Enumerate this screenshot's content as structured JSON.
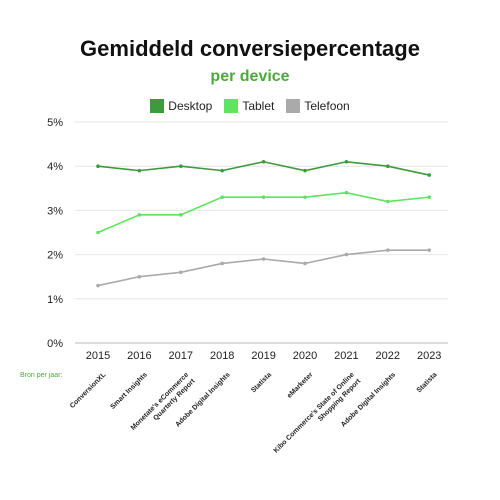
{
  "chart_data": {
    "type": "line",
    "title": "Gemiddeld conversiepercentage",
    "subtitle": "per device",
    "x": [
      "2015",
      "2016",
      "2017",
      "2018",
      "2019",
      "2020",
      "2021",
      "2022",
      "2023"
    ],
    "ylim": [
      0,
      5
    ],
    "yticks": [
      "0%",
      "1%",
      "2%",
      "3%",
      "4%",
      "5%"
    ],
    "grid": true,
    "legend_position": "top-center",
    "series": [
      {
        "name": "Desktop",
        "color": "#3c9b3c",
        "values": [
          4.0,
          3.9,
          4.0,
          3.9,
          4.1,
          3.9,
          4.1,
          4.0,
          3.8
        ]
      },
      {
        "name": "Tablet",
        "color": "#5ee45e",
        "values": [
          2.5,
          2.9,
          2.9,
          3.3,
          3.3,
          3.3,
          3.4,
          3.2,
          3.3
        ]
      },
      {
        "name": "Telefoon",
        "color": "#aaaaaa",
        "values": [
          1.3,
          1.5,
          1.6,
          1.8,
          1.9,
          1.8,
          2.0,
          2.1,
          2.1
        ]
      }
    ],
    "source_label": "Bron per jaar:",
    "sources": [
      [
        "ConversionXL"
      ],
      [
        "Smart Insights"
      ],
      [
        "Monetate's eCommerce",
        "Quarterly Report"
      ],
      [
        "Adobe Digital Insights"
      ],
      [
        "Statista"
      ],
      [
        "eMarketer"
      ],
      [
        "Kibo Commerce's State of Online",
        "Shopping Report"
      ],
      [
        "Adobe Digital Insights"
      ],
      [
        "Statista"
      ]
    ]
  }
}
